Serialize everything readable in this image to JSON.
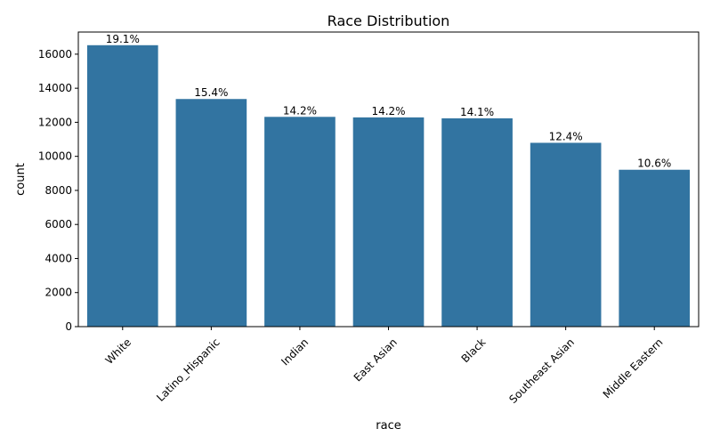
{
  "chart_data": {
    "type": "bar",
    "title": "Race Distribution",
    "xlabel": "race",
    "ylabel": "count",
    "categories": [
      "White",
      "Latino_Hispanic",
      "Indian",
      "East Asian",
      "Black",
      "Southeast Asian",
      "Middle Eastern"
    ],
    "values": [
      16527,
      13367,
      12319,
      12287,
      12233,
      10795,
      9213
    ],
    "data_labels": [
      "19.1%",
      "15.4%",
      "14.2%",
      "14.2%",
      "14.1%",
      "12.4%",
      "10.6%"
    ],
    "ylim": [
      0,
      17300
    ],
    "yticks": [
      0,
      2000,
      4000,
      6000,
      8000,
      10000,
      12000,
      14000,
      16000
    ],
    "grid": false,
    "legend": "none",
    "bar_color": "#3274a1"
  }
}
